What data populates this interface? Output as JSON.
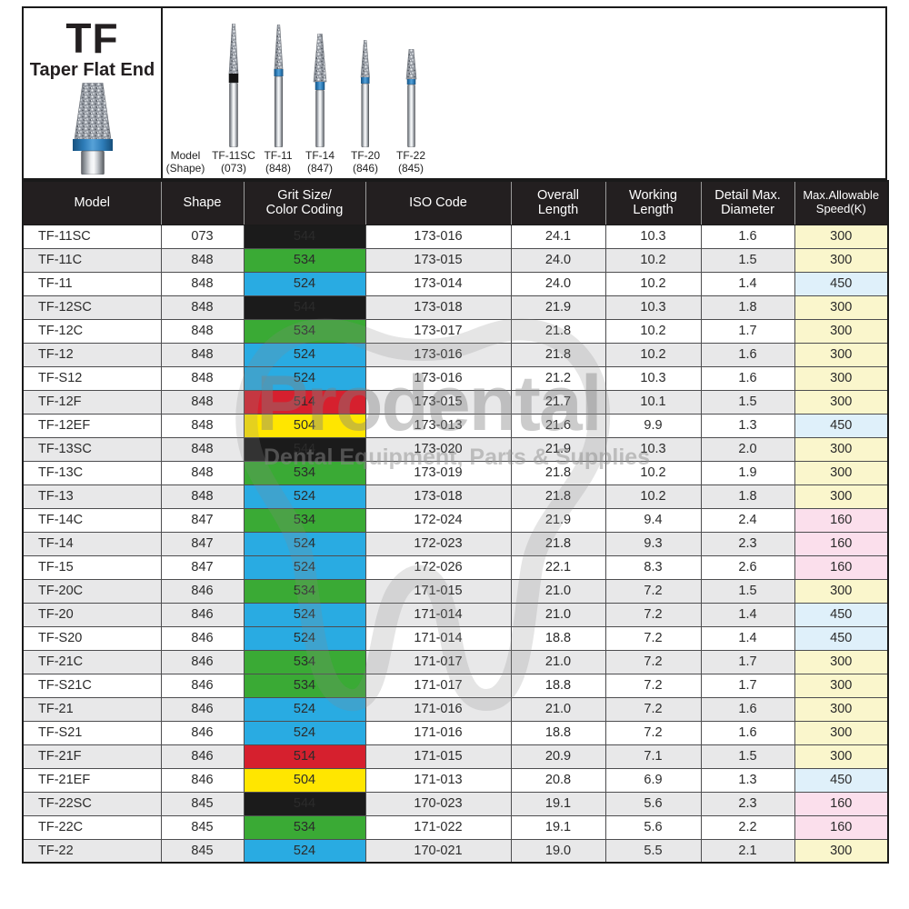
{
  "product": {
    "code": "TF",
    "name": "Taper Flat End"
  },
  "bur_display": {
    "figures": [
      {
        "label": "Model\n(Shape)",
        "has_bur": false,
        "band": null
      },
      {
        "label": "TF-11SC\n(073)",
        "has_bur": true,
        "band": "black"
      },
      {
        "label": "TF-11\n(848)",
        "has_bur": true,
        "band": "blue"
      },
      {
        "label": "TF-14\n(847)",
        "has_bur": true,
        "band": "blue"
      },
      {
        "label": "TF-20\n(846)",
        "has_bur": true,
        "band": "blue"
      },
      {
        "label": "TF-22\n(845)",
        "has_bur": true,
        "band": "blue"
      }
    ]
  },
  "watermark": {
    "brand": "Prodental",
    "tagline": "Dental Equipment, Parts & Supplies"
  },
  "table": {
    "columns": [
      "Model",
      "Shape",
      "Grit Size/\nColor Coding",
      "ISO Code",
      "Overall\nLength",
      "Working\nLength",
      "Detail Max.\nDiameter",
      "Max.Allowable\nSpeed(K)"
    ],
    "rows": [
      {
        "model": "TF-11SC",
        "shape": "073",
        "grit": "544",
        "grit_color": "black",
        "iso": "173-016",
        "overall": "24.1",
        "working": "10.3",
        "diameter": "1.6",
        "speed": "300",
        "speed_color": "yellow",
        "shaded": false
      },
      {
        "model": "TF-11C",
        "shape": "848",
        "grit": "534",
        "grit_color": "green",
        "iso": "173-015",
        "overall": "24.0",
        "working": "10.2",
        "diameter": "1.5",
        "speed": "300",
        "speed_color": "yellow",
        "shaded": true
      },
      {
        "model": "TF-11",
        "shape": "848",
        "grit": "524",
        "grit_color": "blue",
        "iso": "173-014",
        "overall": "24.0",
        "working": "10.2",
        "diameter": "1.4",
        "speed": "450",
        "speed_color": "blue",
        "shaded": false
      },
      {
        "model": "TF-12SC",
        "shape": "848",
        "grit": "544",
        "grit_color": "black",
        "iso": "173-018",
        "overall": "21.9",
        "working": "10.3",
        "diameter": "1.8",
        "speed": "300",
        "speed_color": "yellow",
        "shaded": true
      },
      {
        "model": "TF-12C",
        "shape": "848",
        "grit": "534",
        "grit_color": "green",
        "iso": "173-017",
        "overall": "21.8",
        "working": "10.2",
        "diameter": "1.7",
        "speed": "300",
        "speed_color": "yellow",
        "shaded": false
      },
      {
        "model": "TF-12",
        "shape": "848",
        "grit": "524",
        "grit_color": "blue",
        "iso": "173-016",
        "overall": "21.8",
        "working": "10.2",
        "diameter": "1.6",
        "speed": "300",
        "speed_color": "yellow",
        "shaded": true
      },
      {
        "model": "TF-S12",
        "shape": "848",
        "grit": "524",
        "grit_color": "blue",
        "iso": "173-016",
        "overall": "21.2",
        "working": "10.3",
        "diameter": "1.6",
        "speed": "300",
        "speed_color": "yellow",
        "shaded": false
      },
      {
        "model": "TF-12F",
        "shape": "848",
        "grit": "514",
        "grit_color": "red",
        "iso": "173-015",
        "overall": "21.7",
        "working": "10.1",
        "diameter": "1.5",
        "speed": "300",
        "speed_color": "yellow",
        "shaded": true
      },
      {
        "model": "TF-12EF",
        "shape": "848",
        "grit": "504",
        "grit_color": "yellow",
        "iso": "173-013",
        "overall": "21.6",
        "working": "9.9",
        "diameter": "1.3",
        "speed": "450",
        "speed_color": "blue",
        "shaded": false
      },
      {
        "model": "TF-13SC",
        "shape": "848",
        "grit": "544",
        "grit_color": "black",
        "iso": "173-020",
        "overall": "21.9",
        "working": "10.3",
        "diameter": "2.0",
        "speed": "300",
        "speed_color": "yellow",
        "shaded": true
      },
      {
        "model": "TF-13C",
        "shape": "848",
        "grit": "534",
        "grit_color": "green",
        "iso": "173-019",
        "overall": "21.8",
        "working": "10.2",
        "diameter": "1.9",
        "speed": "300",
        "speed_color": "yellow",
        "shaded": false
      },
      {
        "model": "TF-13",
        "shape": "848",
        "grit": "524",
        "grit_color": "blue",
        "iso": "173-018",
        "overall": "21.8",
        "working": "10.2",
        "diameter": "1.8",
        "speed": "300",
        "speed_color": "yellow",
        "shaded": true
      },
      {
        "model": "TF-14C",
        "shape": "847",
        "grit": "534",
        "grit_color": "green",
        "iso": "172-024",
        "overall": "21.9",
        "working": "9.4",
        "diameter": "2.4",
        "speed": "160",
        "speed_color": "pink",
        "shaded": false
      },
      {
        "model": "TF-14",
        "shape": "847",
        "grit": "524",
        "grit_color": "blue",
        "iso": "172-023",
        "overall": "21.8",
        "working": "9.3",
        "diameter": "2.3",
        "speed": "160",
        "speed_color": "pink",
        "shaded": true
      },
      {
        "model": "TF-15",
        "shape": "847",
        "grit": "524",
        "grit_color": "blue",
        "iso": "172-026",
        "overall": "22.1",
        "working": "8.3",
        "diameter": "2.6",
        "speed": "160",
        "speed_color": "pink",
        "shaded": false
      },
      {
        "model": "TF-20C",
        "shape": "846",
        "grit": "534",
        "grit_color": "green",
        "iso": "171-015",
        "overall": "21.0",
        "working": "7.2",
        "diameter": "1.5",
        "speed": "300",
        "speed_color": "yellow",
        "shaded": true
      },
      {
        "model": "TF-20",
        "shape": "846",
        "grit": "524",
        "grit_color": "blue",
        "iso": "171-014",
        "overall": "21.0",
        "working": "7.2",
        "diameter": "1.4",
        "speed": "450",
        "speed_color": "blue",
        "shaded": true
      },
      {
        "model": "TF-S20",
        "shape": "846",
        "grit": "524",
        "grit_color": "blue",
        "iso": "171-014",
        "overall": "18.8",
        "working": "7.2",
        "diameter": "1.4",
        "speed": "450",
        "speed_color": "blue",
        "shaded": false
      },
      {
        "model": "TF-21C",
        "shape": "846",
        "grit": "534",
        "grit_color": "green",
        "iso": "171-017",
        "overall": "21.0",
        "working": "7.2",
        "diameter": "1.7",
        "speed": "300",
        "speed_color": "yellow",
        "shaded": true
      },
      {
        "model": "TF-S21C",
        "shape": "846",
        "grit": "534",
        "grit_color": "green",
        "iso": "171-017",
        "overall": "18.8",
        "working": "7.2",
        "diameter": "1.7",
        "speed": "300",
        "speed_color": "yellow",
        "shaded": false
      },
      {
        "model": "TF-21",
        "shape": "846",
        "grit": "524",
        "grit_color": "blue",
        "iso": "171-016",
        "overall": "21.0",
        "working": "7.2",
        "diameter": "1.6",
        "speed": "300",
        "speed_color": "yellow",
        "shaded": true
      },
      {
        "model": "TF-S21",
        "shape": "846",
        "grit": "524",
        "grit_color": "blue",
        "iso": "171-016",
        "overall": "18.8",
        "working": "7.2",
        "diameter": "1.6",
        "speed": "300",
        "speed_color": "yellow",
        "shaded": false
      },
      {
        "model": "TF-21F",
        "shape": "846",
        "grit": "514",
        "grit_color": "red",
        "iso": "171-015",
        "overall": "20.9",
        "working": "7.1",
        "diameter": "1.5",
        "speed": "300",
        "speed_color": "yellow",
        "shaded": true
      },
      {
        "model": "TF-21EF",
        "shape": "846",
        "grit": "504",
        "grit_color": "yellow",
        "iso": "171-013",
        "overall": "20.8",
        "working": "6.9",
        "diameter": "1.3",
        "speed": "450",
        "speed_color": "blue",
        "shaded": false
      },
      {
        "model": "TF-22SC",
        "shape": "845",
        "grit": "544",
        "grit_color": "black",
        "iso": "170-023",
        "overall": "19.1",
        "working": "5.6",
        "diameter": "2.3",
        "speed": "160",
        "speed_color": "pink",
        "shaded": true
      },
      {
        "model": "TF-22C",
        "shape": "845",
        "grit": "534",
        "grit_color": "green",
        "iso": "171-022",
        "overall": "19.1",
        "working": "5.6",
        "diameter": "2.2",
        "speed": "160",
        "speed_color": "pink",
        "shaded": false
      },
      {
        "model": "TF-22",
        "shape": "845",
        "grit": "524",
        "grit_color": "blue",
        "iso": "170-021",
        "overall": "19.0",
        "working": "5.5",
        "diameter": "2.1",
        "speed": "300",
        "speed_color": "yellow",
        "shaded": true
      }
    ]
  },
  "colors": {
    "grit": {
      "black": "#1b1b1b",
      "green": "#3aaa35",
      "blue": "#29abe2",
      "red": "#d6202e",
      "yellow": "#ffe600"
    },
    "speed": {
      "yellow": "#faf6cc",
      "blue": "#dff0fa",
      "pink": "#fbdfec"
    },
    "header_bg": "#231f20",
    "row_alt": "#e8e8e9"
  }
}
